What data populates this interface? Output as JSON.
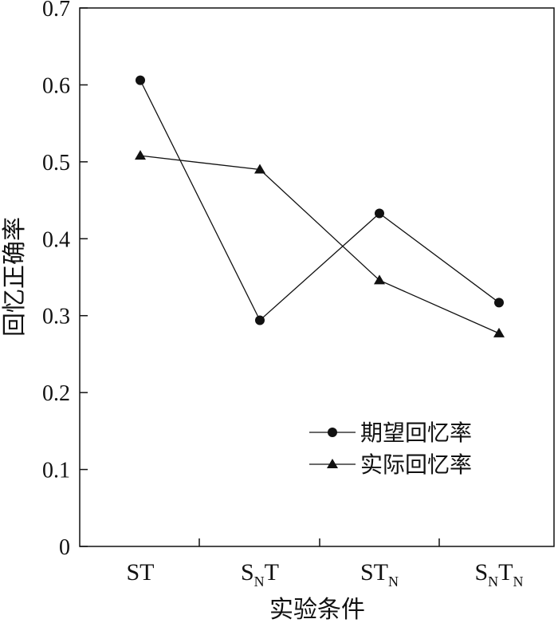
{
  "chart_data": {
    "type": "line",
    "xlabel": "实验条件",
    "ylabel": "回忆正确率",
    "ylim": [
      0,
      0.7
    ],
    "yticks": [
      "0",
      "0.1",
      "0.2",
      "0.3",
      "0.4",
      "0.5",
      "0.6",
      "0.7"
    ],
    "categories": [
      {
        "label": "ST",
        "parts": [
          {
            "t": "S"
          },
          {
            "t": "T"
          }
        ]
      },
      {
        "label": "SNT",
        "parts": [
          {
            "t": "S"
          },
          {
            "t": "N",
            "sub": true
          },
          {
            "t": "T"
          }
        ]
      },
      {
        "label": "STN",
        "parts": [
          {
            "t": "S"
          },
          {
            "t": "T"
          },
          {
            "t": "N",
            "sub": true
          }
        ]
      },
      {
        "label": "SNTN",
        "parts": [
          {
            "t": "S"
          },
          {
            "t": "N",
            "sub": true
          },
          {
            "t": "T"
          },
          {
            "t": "N",
            "sub": true
          }
        ]
      }
    ],
    "series": [
      {
        "name": "期望回忆率",
        "marker": "circle",
        "values": [
          0.606,
          0.294,
          0.433,
          0.317
        ]
      },
      {
        "name": "实际回忆率",
        "marker": "triangle",
        "values": [
          0.508,
          0.49,
          0.346,
          0.277
        ]
      }
    ],
    "legend_position": "lower-right inside",
    "grid": false,
    "colors": {
      "line": "#111111",
      "marker": "#111111"
    }
  }
}
